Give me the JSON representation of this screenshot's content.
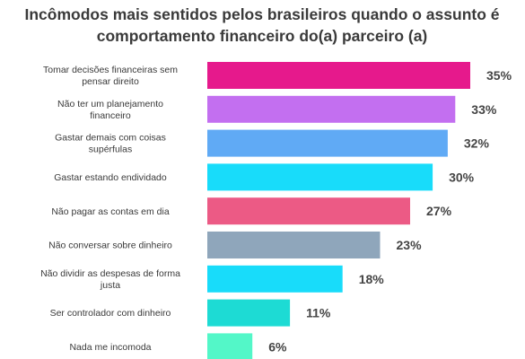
{
  "chart_data": {
    "type": "bar",
    "orientation": "horizontal",
    "title": "Incômodos mais sentidos pelos brasileiros quando o assunto é comportamento financeiro do(a) parceiro (a)",
    "categories": [
      "Tomar decisões financeiras sem pensar direito",
      "Não ter um planejamento financeiro",
      "Gastar demais com coisas supérfulas",
      "Gastar estando endividado",
      "Não pagar as contas em dia",
      "Não conversar sobre dinheiro",
      "Não dividir as despesas de forma justa",
      "Ser controlador com dinheiro",
      "Nada me incomoda"
    ],
    "category_lines": [
      [
        "Tomar decisões financeiras sem",
        "pensar direito"
      ],
      [
        "Não ter um planejamento",
        "financeiro"
      ],
      [
        "Gastar demais com coisas",
        "supérfulas"
      ],
      [
        "Gastar estando endividado"
      ],
      [
        "Não pagar as contas em dia"
      ],
      [
        "Não conversar sobre dinheiro"
      ],
      [
        "Não dividir as despesas de forma",
        "justa"
      ],
      [
        "Ser controlador com dinheiro"
      ],
      [
        "Nada me incomoda"
      ]
    ],
    "values": [
      35,
      33,
      32,
      30,
      27,
      23,
      18,
      11,
      6
    ],
    "value_labels": [
      "35%",
      "33%",
      "32%",
      "30%",
      "27%",
      "23%",
      "18%",
      "11%",
      "6%"
    ],
    "unit": "%",
    "xlim": [
      0,
      35
    ],
    "colors": [
      "#e6198c",
      "#c36ff0",
      "#60aaf5",
      "#18dcfa",
      "#ec5a85",
      "#8fa6bb",
      "#18dcfa",
      "#1ddbd4",
      "#53f7c8"
    ],
    "grid": false,
    "legend": "none",
    "label_color": "#3a3a3a",
    "value_label_color": "#444444"
  }
}
